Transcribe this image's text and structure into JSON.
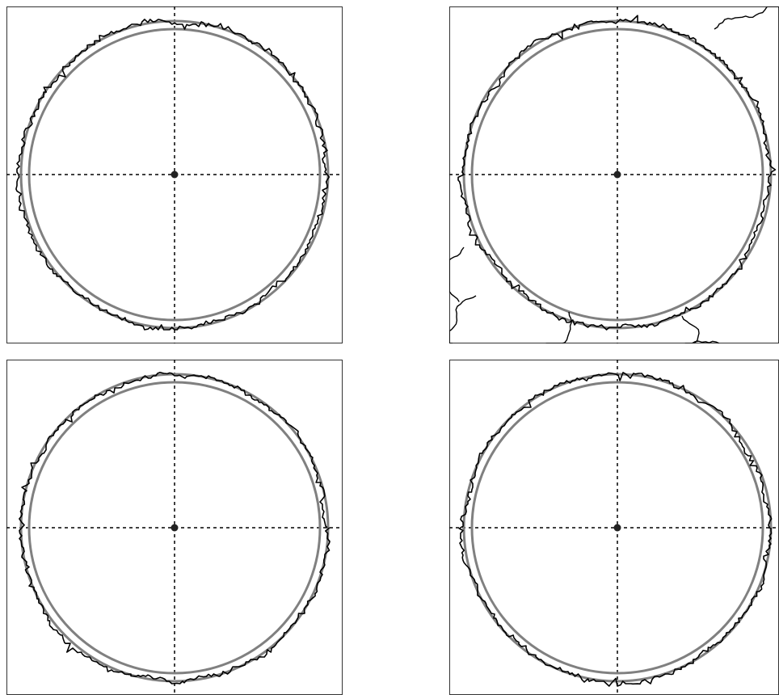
{
  "figure": {
    "panels": [
      {
        "id": "top-left",
        "ring_colors": [
          "#808080",
          "#808080"
        ],
        "trace_color": "#000000"
      },
      {
        "id": "top-right",
        "ring_colors": [
          "#808080",
          "#808080"
        ],
        "trace_color": "#000000"
      },
      {
        "id": "bottom-left",
        "ring_colors": [
          "#808080",
          "#808080"
        ],
        "trace_color": "#000000"
      },
      {
        "id": "bottom-right",
        "ring_colors": [
          "#808080",
          "#808080"
        ],
        "trace_color": "#000000"
      }
    ],
    "axis_color": "#000000",
    "center_point_color": "#222222"
  }
}
